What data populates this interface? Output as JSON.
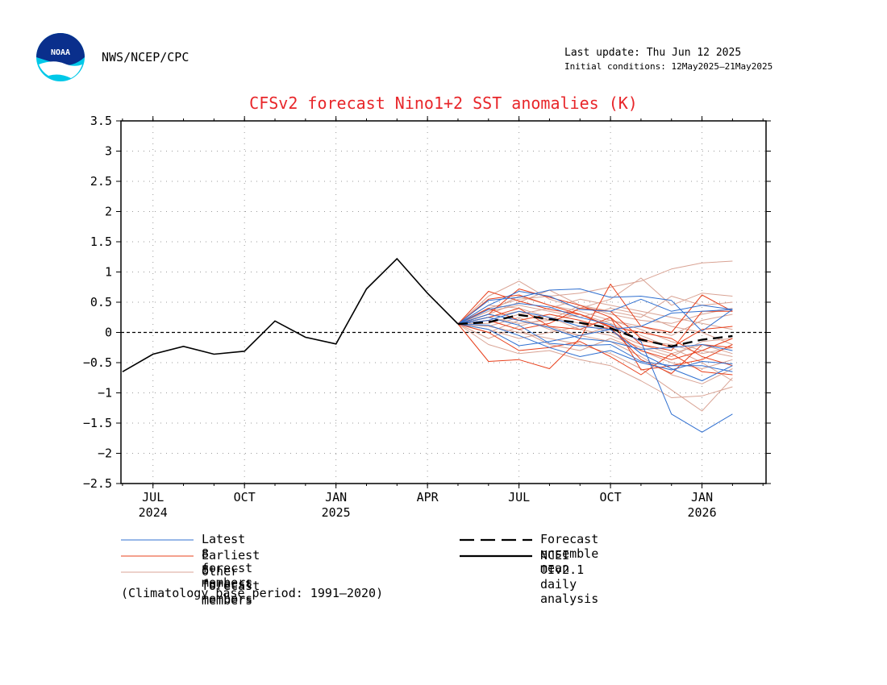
{
  "header": {
    "agency": "NWS/NCEP/CPC",
    "last_update": "Last update: Thu Jun 12 2025",
    "initial_conditions": "Initial conditions: 12May2025—21May2025",
    "logo_text": "NOAA"
  },
  "chart_data": {
    "type": "line",
    "title": "CFSv2 forecast Nino1+2 SST anomalies (K)",
    "ylim": [
      -2.5,
      3.5
    ],
    "yticks": [
      3.5,
      3,
      2.5,
      2,
      1.5,
      1,
      0.5,
      0,
      -0.5,
      -1,
      -1.5,
      -2,
      -2.5
    ],
    "ytick_labels": [
      "3.5",
      "3",
      "2.5",
      "2",
      "1.5",
      "1",
      "0.5",
      "0",
      "−0.5",
      "−1",
      "−1.5",
      "−2",
      "−2.5"
    ],
    "x_start": "2024-06",
    "x_end": "2026-01",
    "xticks": [
      {
        "month": "2024-07",
        "label": "JUL",
        "label2": "2024"
      },
      {
        "month": "2024-10",
        "label": "OCT",
        "label2": ""
      },
      {
        "month": "2025-01",
        "label": "JAN",
        "label2": "2025"
      },
      {
        "month": "2025-04",
        "label": "APR",
        "label2": ""
      },
      {
        "month": "2025-07",
        "label": "JUL",
        "label2": ""
      },
      {
        "month": "2025-10",
        "label": "OCT",
        "label2": ""
      },
      {
        "month": "2026-01",
        "label": "JAN",
        "label2": "2026"
      }
    ],
    "grid": true,
    "zero_line": "dashed",
    "colors": {
      "latest": "#2f6fd0",
      "earliest": "#e8401c",
      "other": "#d9a394",
      "mean": "#000000",
      "analysis": "#000000",
      "title": "#e8262a"
    },
    "analysis": {
      "name": "NCEI OIv2.1 daily analysis",
      "x": [
        "2024-06",
        "2024-07",
        "2024-08",
        "2024-09",
        "2024-10",
        "2024-11",
        "2024-12",
        "2025-01",
        "2025-02",
        "2025-03",
        "2025-04",
        "2025-05"
      ],
      "values": [
        -0.65,
        -0.36,
        -0.23,
        -0.36,
        -0.31,
        0.19,
        -0.08,
        -0.19,
        0.72,
        1.22,
        0.65,
        0.14
      ]
    },
    "ensemble_mean": {
      "name": "Forecast ensemble mean",
      "x": [
        "2025-05",
        "2025-06",
        "2025-07",
        "2025-08",
        "2025-09",
        "2025-10",
        "2025-11",
        "2025-12",
        "2026-01",
        "2026-02"
      ],
      "values": [
        0.14,
        0.17,
        0.29,
        0.22,
        0.16,
        0.07,
        -0.12,
        -0.23,
        -0.12,
        -0.06
      ]
    },
    "member_groups": [
      {
        "group": "latest",
        "name": "Latest 8 forecst members",
        "x": [
          "2025-05",
          "2025-06",
          "2025-07",
          "2025-08",
          "2025-09",
          "2025-10",
          "2025-11",
          "2025-12",
          "2026-01",
          "2026-02"
        ],
        "members": [
          [
            0.14,
            0.53,
            0.58,
            0.7,
            0.72,
            0.58,
            0.6,
            0.53,
            0.02,
            0.38
          ],
          [
            0.14,
            0.38,
            0.48,
            0.42,
            0.25,
            0.13,
            -0.15,
            -1.35,
            -1.65,
            -1.35
          ],
          [
            0.14,
            0.25,
            0.12,
            -0.18,
            -0.22,
            -0.2,
            -0.48,
            -0.55,
            -0.55,
            -0.65
          ],
          [
            0.14,
            0.05,
            -0.22,
            -0.15,
            -0.05,
            0.05,
            0.1,
            0.32,
            0.35,
            0.38
          ],
          [
            0.14,
            0.45,
            0.68,
            0.6,
            0.38,
            0.35,
            0.55,
            0.35,
            0.45,
            0.38
          ],
          [
            0.14,
            0.2,
            0.35,
            0.25,
            0.1,
            0.05,
            -0.35,
            -0.6,
            -0.8,
            -0.55
          ],
          [
            0.14,
            0.12,
            -0.05,
            -0.25,
            -0.4,
            -0.3,
            -0.5,
            -0.62,
            -0.48,
            -0.52
          ],
          [
            0.14,
            0.3,
            0.2,
            0.08,
            -0.1,
            -0.15,
            -0.28,
            -0.25,
            -0.2,
            -0.3
          ]
        ]
      },
      {
        "group": "earliest",
        "name": "Earliest 8 forecst members",
        "x": [
          "2025-05",
          "2025-06",
          "2025-07",
          "2025-08",
          "2025-09",
          "2025-10",
          "2025-11",
          "2025-12",
          "2026-01",
          "2026-02"
        ],
        "members": [
          [
            0.14,
            -0.48,
            -0.45,
            -0.6,
            -0.1,
            0.8,
            0.1,
            0.0,
            0.62,
            0.35
          ],
          [
            0.14,
            0.68,
            0.52,
            0.38,
            0.3,
            0.08,
            -0.45,
            -0.68,
            -0.2,
            -0.25
          ],
          [
            0.14,
            0.3,
            0.72,
            0.58,
            0.45,
            0.25,
            -0.62,
            -0.55,
            -0.45,
            -0.2
          ],
          [
            0.14,
            0.0,
            -0.3,
            -0.25,
            -0.15,
            -0.4,
            -0.7,
            -0.35,
            -0.65,
            -0.7
          ],
          [
            0.14,
            0.25,
            0.4,
            0.1,
            0.05,
            0.25,
            -0.2,
            -0.3,
            0.35,
            0.35
          ],
          [
            0.14,
            0.55,
            0.62,
            0.45,
            0.3,
            0.1,
            0.0,
            -0.1,
            -0.4,
            -0.55
          ],
          [
            0.14,
            0.4,
            0.2,
            0.3,
            0.2,
            0.05,
            -0.3,
            -0.45,
            -0.3,
            -0.1
          ],
          [
            0.14,
            0.2,
            0.05,
            0.15,
            0.4,
            0.35,
            -0.1,
            -0.25,
            0.05,
            0.1
          ]
        ]
      },
      {
        "group": "other",
        "name": "Other forecast members",
        "x": [
          "2025-05",
          "2025-06",
          "2025-07",
          "2025-08",
          "2025-09",
          "2025-10",
          "2025-11",
          "2025-12",
          "2026-01",
          "2026-02"
        ],
        "members": [
          [
            0.14,
            0.4,
            0.55,
            0.6,
            0.65,
            0.75,
            0.85,
            1.05,
            1.15,
            1.18
          ],
          [
            0.14,
            0.6,
            0.85,
            0.55,
            0.4,
            0.55,
            0.9,
            0.45,
            0.65,
            0.6
          ],
          [
            0.14,
            0.3,
            0.5,
            0.7,
            0.45,
            0.3,
            0.2,
            0.15,
            0.3,
            0.4
          ],
          [
            0.14,
            -0.2,
            -0.35,
            -0.3,
            -0.45,
            -0.55,
            -0.8,
            -1.08,
            -1.05,
            -0.9
          ],
          [
            0.14,
            0.1,
            0.0,
            -0.1,
            -0.2,
            -0.35,
            -0.6,
            -0.95,
            -1.3,
            -0.75
          ],
          [
            0.14,
            0.25,
            0.15,
            0.2,
            0.3,
            0.15,
            -0.05,
            -0.25,
            -0.5,
            -0.8
          ],
          [
            0.14,
            0.35,
            0.45,
            0.35,
            0.25,
            0.4,
            0.3,
            0.1,
            0.0,
            -0.2
          ],
          [
            0.14,
            0.05,
            -0.1,
            0.0,
            0.1,
            0.2,
            0.05,
            -0.15,
            -0.3,
            -0.4
          ],
          [
            0.14,
            0.15,
            0.3,
            0.4,
            0.55,
            0.45,
            0.35,
            0.25,
            0.15,
            0.05
          ],
          [
            0.14,
            0.0,
            0.2,
            0.1,
            -0.05,
            -0.15,
            -0.4,
            -0.7,
            -0.85,
            -0.6
          ],
          [
            0.14,
            0.45,
            0.4,
            0.25,
            0.15,
            0.0,
            -0.2,
            -0.35,
            -0.2,
            -0.35
          ],
          [
            0.14,
            0.2,
            0.05,
            -0.2,
            -0.3,
            -0.1,
            -0.3,
            -0.5,
            -0.6,
            -0.45
          ],
          [
            0.14,
            0.35,
            0.6,
            0.45,
            0.35,
            0.2,
            0.1,
            -0.05,
            0.2,
            0.3
          ],
          [
            0.14,
            -0.1,
            0.1,
            0.25,
            0.05,
            -0.05,
            -0.25,
            -0.4,
            -0.15,
            -0.1
          ],
          [
            0.14,
            0.25,
            0.35,
            0.2,
            0.45,
            0.35,
            0.25,
            0.6,
            0.45,
            0.5
          ],
          [
            0.14,
            0.1,
            0.25,
            0.05,
            -0.05,
            0.1,
            -0.15,
            -0.2,
            -0.35,
            -0.25
          ]
        ]
      }
    ],
    "legend": [
      {
        "key": "latest",
        "label": "Latest 8 forecst members",
        "style": "thin",
        "color": "#2f6fd0"
      },
      {
        "key": "earliest",
        "label": "Earliest 8 forecst members",
        "style": "thin",
        "color": "#e8401c"
      },
      {
        "key": "other",
        "label": "Other forecast members",
        "style": "thin",
        "color": "#d9a394"
      },
      {
        "key": "mean",
        "label": "Forecast ensemble mean",
        "style": "dashed",
        "color": "#000000"
      },
      {
        "key": "analysis",
        "label": "NCEI OIv2.1 daily analysis",
        "style": "solid",
        "color": "#000000"
      }
    ],
    "legend_position": "bottom",
    "note": "(Climatology base period: 1991—2020)"
  }
}
